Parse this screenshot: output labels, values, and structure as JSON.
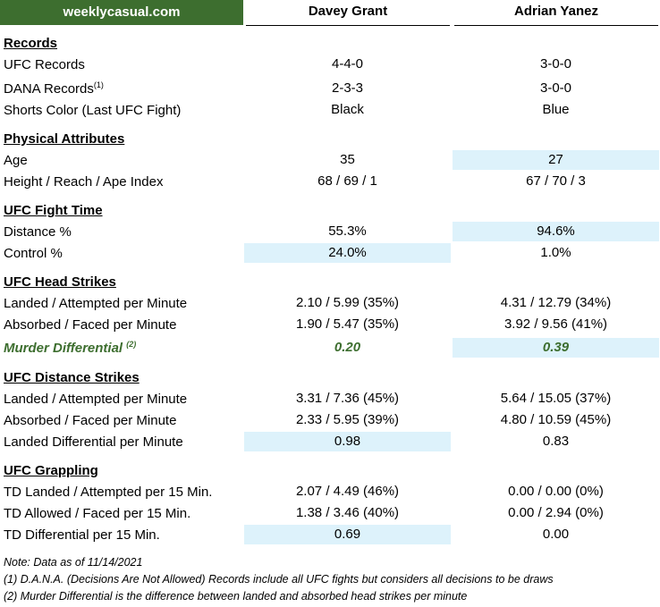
{
  "site": "weeklycasual.com",
  "fighter1": "Davey Grant",
  "fighter2": "Adrian Yanez",
  "sections": {
    "records": "Records",
    "physical": "Physical Attributes",
    "fight_time": "UFC Fight Time",
    "head": "UFC Head Strikes",
    "distance": "UFC Distance Strikes",
    "grappling": "UFC Grappling"
  },
  "rows": {
    "ufc_records": {
      "label": "UFC Records",
      "v1": "4-4-0",
      "v2": "3-0-0"
    },
    "dana_records": {
      "label": "DANA Records",
      "sup": "(1)",
      "v1": "2-3-3",
      "v2": "3-0-0"
    },
    "shorts": {
      "label": "Shorts Color (Last UFC Fight)",
      "v1": "Black",
      "v2": "Blue"
    },
    "age": {
      "label": "Age",
      "v1": "35",
      "v2": "27"
    },
    "height": {
      "label": "Height / Reach / Ape Index",
      "v1": "68 / 69 / 1",
      "v2": "67 / 70 / 3"
    },
    "distance_pct": {
      "label": "Distance %",
      "v1": "55.3%",
      "v2": "94.6%"
    },
    "control_pct": {
      "label": "Control %",
      "v1": "24.0%",
      "v2": "1.0%"
    },
    "head_landed": {
      "label": "Landed / Attempted per Minute",
      "v1": "2.10 / 5.99 (35%)",
      "v2": "4.31 / 12.79 (34%)"
    },
    "head_absorbed": {
      "label": "Absorbed / Faced per Minute",
      "v1": "1.90 / 5.47 (35%)",
      "v2": "3.92 / 9.56 (41%)"
    },
    "murder": {
      "label": "Murder Differential",
      "sup": "(2)",
      "v1": "0.20",
      "v2": "0.39"
    },
    "dist_landed": {
      "label": "Landed / Attempted per Minute",
      "v1": "3.31 / 7.36 (45%)",
      "v2": "5.64 / 15.05 (37%)"
    },
    "dist_absorbed": {
      "label": "Absorbed / Faced per Minute",
      "v1": "2.33 / 5.95 (39%)",
      "v2": "4.80 / 10.59 (45%)"
    },
    "dist_diff": {
      "label": "Landed Differential per Minute",
      "v1": "0.98",
      "v2": "0.83"
    },
    "td_landed": {
      "label": "TD Landed / Attempted per 15 Min.",
      "v1": "2.07 / 4.49 (46%)",
      "v2": "0.00 / 0.00 (0%)"
    },
    "td_allowed": {
      "label": "TD Allowed / Faced per 15 Min.",
      "v1": "1.38 / 3.46 (40%)",
      "v2": "0.00 / 2.94 (0%)"
    },
    "td_diff": {
      "label": "TD Differential per 15 Min.",
      "v1": "0.69",
      "v2": "0.00"
    }
  },
  "notes": {
    "date": "Note: Data as of 11/14/2021",
    "n1": "(1) D.A.N.A. (Decisions Are Not Allowed) Records include all UFC fights but considers all decisions to be draws",
    "n2": "(2) Murder Differential is the difference between landed and absorbed head strikes per minute"
  },
  "colors": {
    "brand_green": "#3d6e2f",
    "highlight": "#ddf2fb"
  }
}
